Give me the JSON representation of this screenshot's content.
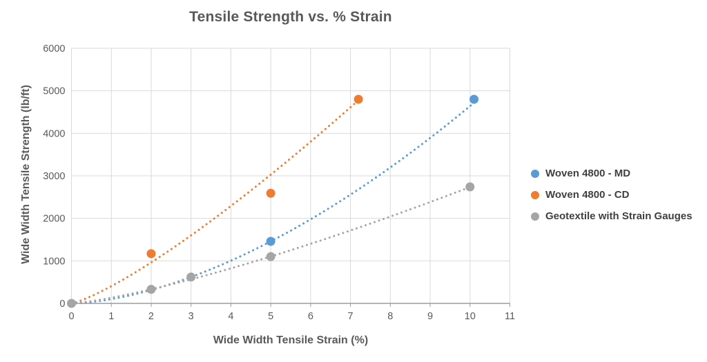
{
  "chart_data": {
    "type": "scatter",
    "title": "Tensile Strength vs. % Strain",
    "xlabel": "Wide Width Tensile Strain (%)",
    "ylabel": "Wide Width Tensile Strength (lb/ft)",
    "xlim": [
      0,
      11
    ],
    "ylim": [
      0,
      6000
    ],
    "xticks": [
      0,
      1,
      2,
      3,
      4,
      5,
      6,
      7,
      8,
      9,
      10,
      11
    ],
    "yticks": [
      0,
      1000,
      2000,
      3000,
      4000,
      5000,
      6000
    ],
    "grid": true,
    "legend_position": "right",
    "series": [
      {
        "name": "Woven 4800 - MD",
        "color": "#5B9BD5",
        "marker": "circle",
        "points": [
          [
            5,
            1460
          ],
          [
            10.1,
            4800
          ]
        ],
        "trendline": {
          "type": "power",
          "a": 99.2,
          "b": 1.67,
          "x_start": 0,
          "x_end": 10.1,
          "style": "dotted"
        }
      },
      {
        "name": "Woven 4800 - CD",
        "color": "#ED7D31",
        "marker": "circle",
        "points": [
          [
            2,
            1170
          ],
          [
            5,
            2590
          ],
          [
            7.2,
            4800
          ]
        ],
        "trendline": {
          "type": "power",
          "a": 405,
          "b": 1.25,
          "x_start": 0,
          "x_end": 7.2,
          "style": "dotted"
        }
      },
      {
        "name": "Geotextile with Strain Gauges",
        "color": "#A5A5A5",
        "marker": "circle",
        "points": [
          [
            0,
            0
          ],
          [
            2,
            330
          ],
          [
            3,
            620
          ],
          [
            5,
            1100
          ],
          [
            10,
            2740
          ]
        ],
        "trendline": {
          "type": "power",
          "a": 134,
          "b": 1.31,
          "x_start": 0,
          "x_end": 10,
          "style": "dotted"
        }
      }
    ],
    "colors": {
      "title": "#595959",
      "axis_title": "#595959",
      "tick_label": "#595959",
      "legend_text": "#404040",
      "gridline": "#d9d9d9",
      "axis_line": "#9b9b9b",
      "background": "#ffffff"
    }
  }
}
